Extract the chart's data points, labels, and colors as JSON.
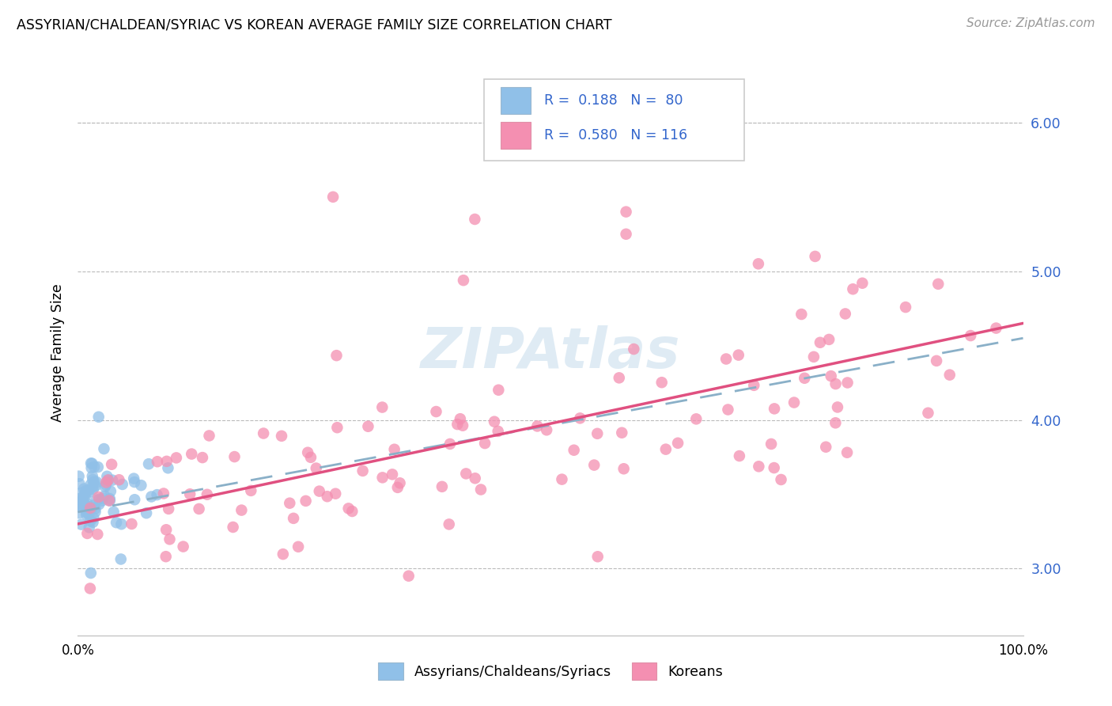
{
  "title": "ASSYRIAN/CHALDEAN/SYRIAC VS KOREAN AVERAGE FAMILY SIZE CORRELATION CHART",
  "source": "Source: ZipAtlas.com",
  "ylabel": "Average Family Size",
  "yticks": [
    3.0,
    4.0,
    5.0,
    6.0
  ],
  "xlim": [
    0.0,
    1.0
  ],
  "ylim": [
    2.55,
    6.35
  ],
  "legend_label1": "Assyrians/Chaldeans/Syriacs",
  "legend_label2": "Koreans",
  "r1": 0.188,
  "n1": 80,
  "r2": 0.58,
  "n2": 116,
  "color_blue": "#90c0e8",
  "color_pink": "#f48fb1",
  "color_blue_line": "#5590d0",
  "color_pink_line": "#e05080",
  "watermark": "ZIPAtlas",
  "ass_line_x0": 0.0,
  "ass_line_y0": 3.38,
  "ass_line_x1": 1.0,
  "ass_line_y1": 4.55,
  "kor_line_x0": 0.0,
  "kor_line_y0": 3.3,
  "kor_line_x1": 1.0,
  "kor_line_y1": 4.65
}
